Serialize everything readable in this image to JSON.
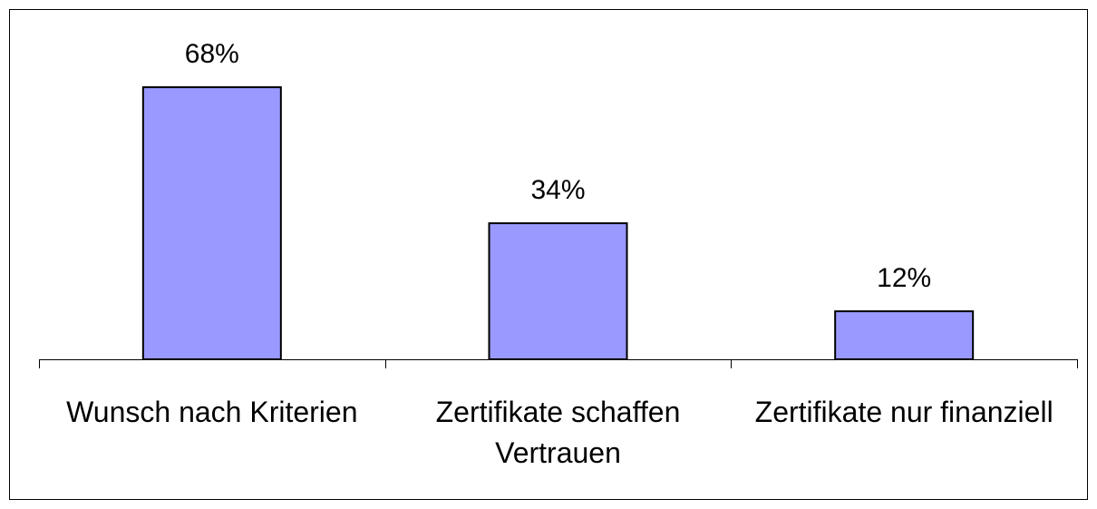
{
  "chart_data": {
    "type": "bar",
    "categories": [
      "Wunsch nach Kriterien",
      "Zertifikate schaffen Vertrauen",
      "Zertifikate nur finanziell"
    ],
    "values": [
      68,
      34,
      12
    ],
    "value_labels": [
      "68%",
      "34%",
      "12%"
    ],
    "color": "#9999ff"
  }
}
